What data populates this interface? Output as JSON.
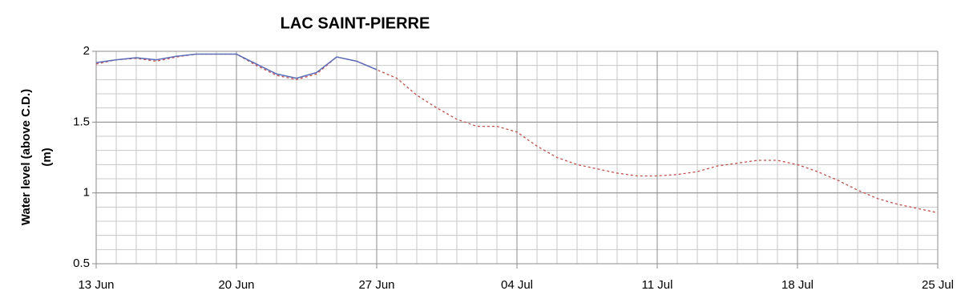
{
  "chart_data": {
    "type": "line",
    "title": "LAC SAINT-PIERRE",
    "ylabel": [
      "Water level (above C.D.)",
      "(m)"
    ],
    "xlim": [
      0,
      42
    ],
    "xticks": [
      {
        "value": 0,
        "label": "13 Jun"
      },
      {
        "value": 7,
        "label": "20 Jun"
      },
      {
        "value": 14,
        "label": "27 Jun"
      },
      {
        "value": 21,
        "label": "04 Jul"
      },
      {
        "value": 28,
        "label": "11 Jul"
      },
      {
        "value": 35,
        "label": "18 Jul"
      },
      {
        "value": 42,
        "label": "25 Jul"
      }
    ],
    "ylim": [
      0.5,
      2
    ],
    "yticks": [
      0.5,
      1,
      1.5,
      2
    ],
    "grid": true,
    "x_minor_step": 1,
    "y_minor_step": 0.1,
    "series": [
      {
        "color": "#5b6bb5",
        "dash": false,
        "x": [
          0,
          1,
          2,
          3,
          4,
          5,
          6,
          7,
          8,
          9,
          10,
          11,
          12,
          13,
          14
        ],
        "values": [
          1.92,
          1.94,
          1.955,
          1.94,
          1.965,
          1.98,
          1.98,
          1.98,
          1.91,
          1.84,
          1.81,
          1.85,
          1.96,
          1.93,
          1.87
        ]
      },
      {
        "color": "#c0504d",
        "dash": true,
        "x": [
          0,
          1,
          2,
          3,
          4,
          5,
          6,
          7,
          8,
          9,
          10,
          11,
          12,
          13,
          14,
          15,
          16,
          17,
          18,
          19,
          20,
          21,
          22,
          23,
          24,
          25,
          26,
          27,
          28,
          29,
          30,
          31,
          32,
          33,
          34,
          35,
          36,
          37,
          38,
          39,
          40,
          41,
          42
        ],
        "values": [
          1.91,
          1.94,
          1.95,
          1.93,
          1.96,
          1.98,
          1.98,
          1.98,
          1.9,
          1.83,
          1.8,
          1.84,
          1.96,
          1.93,
          1.87,
          1.81,
          1.69,
          1.6,
          1.52,
          1.47,
          1.47,
          1.43,
          1.33,
          1.25,
          1.2,
          1.17,
          1.14,
          1.12,
          1.12,
          1.13,
          1.15,
          1.19,
          1.21,
          1.23,
          1.23,
          1.2,
          1.15,
          1.09,
          1.02,
          0.96,
          0.92,
          0.89,
          0.86
        ]
      }
    ]
  }
}
